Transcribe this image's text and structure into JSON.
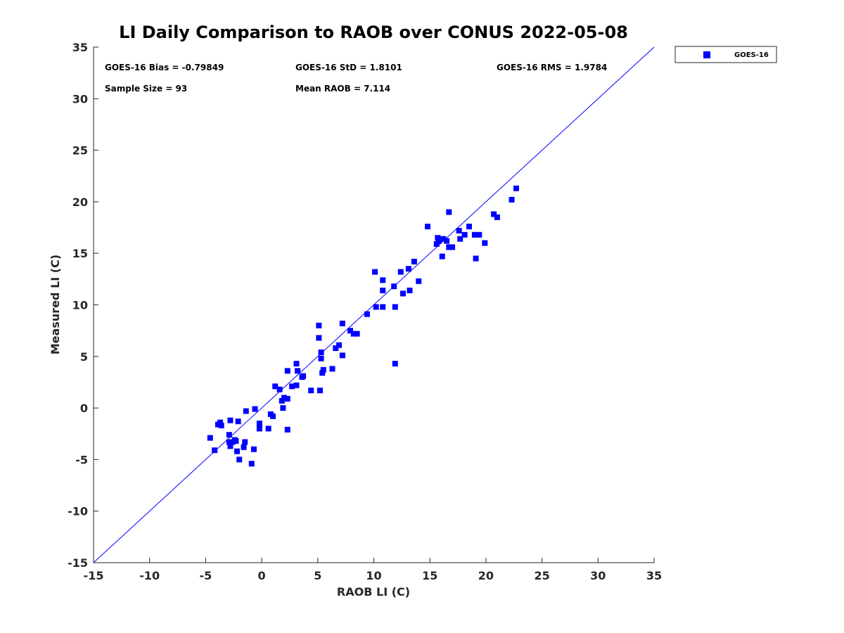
{
  "chart_data": {
    "type": "scatter",
    "title": "LI Daily Comparison to RAOB over CONUS 2022-05-08",
    "xlabel": "RAOB LI (C)",
    "ylabel": "Measured LI (C)",
    "xlim": [
      -15,
      35
    ],
    "ylim": [
      -15,
      35
    ],
    "xticks": [
      -15,
      -10,
      -5,
      0,
      5,
      10,
      15,
      20,
      25,
      30,
      35
    ],
    "yticks": [
      -15,
      -10,
      -5,
      0,
      5,
      10,
      15,
      20,
      25,
      30,
      35
    ],
    "grid": false,
    "legend_position": "outside top-right",
    "marker_color": "#0000ff",
    "line_color": "#0000ff",
    "reference_line": {
      "name": "1:1 line",
      "x": [
        -15,
        35
      ],
      "y": [
        -15,
        35
      ]
    },
    "stats": {
      "bias": "GOES-16 Bias = -0.79849",
      "std": "GOES-16 StD = 1.8101",
      "rms": "GOES-16 RMS = 1.9784",
      "sample_size": "Sample Size = 93",
      "mean_raob": "Mean RAOB = 7.114"
    },
    "series": [
      {
        "name": "GOES-16",
        "points": [
          [
            -4.6,
            -2.9
          ],
          [
            -4.2,
            -4.1
          ],
          [
            -3.9,
            -1.6
          ],
          [
            -3.7,
            -1.4
          ],
          [
            -3.6,
            -1.7
          ],
          [
            -2.9,
            -2.6
          ],
          [
            -2.9,
            -3.3
          ],
          [
            -2.8,
            -1.2
          ],
          [
            -2.8,
            -3.7
          ],
          [
            -2.6,
            -3.3
          ],
          [
            -2.4,
            -3.1
          ],
          [
            -2.3,
            -3.2
          ],
          [
            -2.2,
            -4.2
          ],
          [
            -2.1,
            -1.3
          ],
          [
            -2.0,
            -5.0
          ],
          [
            -1.6,
            -3.8
          ],
          [
            -1.5,
            -3.3
          ],
          [
            -1.4,
            -0.3
          ],
          [
            -0.9,
            -5.4
          ],
          [
            -0.7,
            -4.0
          ],
          [
            -0.6,
            -0.1
          ],
          [
            -0.2,
            -1.5
          ],
          [
            -0.2,
            -2.0
          ],
          [
            0.6,
            -2.0
          ],
          [
            0.8,
            -0.6
          ],
          [
            1.0,
            -0.8
          ],
          [
            1.2,
            2.1
          ],
          [
            1.6,
            1.8
          ],
          [
            1.8,
            0.7
          ],
          [
            1.9,
            0.0
          ],
          [
            2.0,
            1.0
          ],
          [
            2.3,
            0.9
          ],
          [
            2.3,
            3.6
          ],
          [
            2.3,
            -2.1
          ],
          [
            2.7,
            2.1
          ],
          [
            3.1,
            4.3
          ],
          [
            3.1,
            2.2
          ],
          [
            3.2,
            3.6
          ],
          [
            3.6,
            3.0
          ],
          [
            3.7,
            3.1
          ],
          [
            4.4,
            1.7
          ],
          [
            5.1,
            8.0
          ],
          [
            5.1,
            6.8
          ],
          [
            5.2,
            1.7
          ],
          [
            5.3,
            5.4
          ],
          [
            5.3,
            4.8
          ],
          [
            5.4,
            3.4
          ],
          [
            5.5,
            3.7
          ],
          [
            6.3,
            3.8
          ],
          [
            6.6,
            5.8
          ],
          [
            6.9,
            6.1
          ],
          [
            7.2,
            5.1
          ],
          [
            7.2,
            8.2
          ],
          [
            7.9,
            7.5
          ],
          [
            8.2,
            7.2
          ],
          [
            8.5,
            7.2
          ],
          [
            9.4,
            9.1
          ],
          [
            10.1,
            13.2
          ],
          [
            10.2,
            9.8
          ],
          [
            10.8,
            12.4
          ],
          [
            10.8,
            11.4
          ],
          [
            10.8,
            9.8
          ],
          [
            11.8,
            11.8
          ],
          [
            11.9,
            9.8
          ],
          [
            11.9,
            4.3
          ],
          [
            12.4,
            13.2
          ],
          [
            12.6,
            11.1
          ],
          [
            13.1,
            13.5
          ],
          [
            13.2,
            11.4
          ],
          [
            13.6,
            14.2
          ],
          [
            14.0,
            12.3
          ],
          [
            14.8,
            17.6
          ],
          [
            15.6,
            15.9
          ],
          [
            15.7,
            16.5
          ],
          [
            15.8,
            16.2
          ],
          [
            16.1,
            14.7
          ],
          [
            16.2,
            16.4
          ],
          [
            16.5,
            16.2
          ],
          [
            16.7,
            15.6
          ],
          [
            16.7,
            19.0
          ],
          [
            17.0,
            15.6
          ],
          [
            17.6,
            17.2
          ],
          [
            17.7,
            16.4
          ],
          [
            18.1,
            16.8
          ],
          [
            18.5,
            17.6
          ],
          [
            19.0,
            16.8
          ],
          [
            19.1,
            14.5
          ],
          [
            19.4,
            16.8
          ],
          [
            19.9,
            16.0
          ],
          [
            20.7,
            18.8
          ],
          [
            21.0,
            18.5
          ],
          [
            22.3,
            20.2
          ],
          [
            22.7,
            21.3
          ]
        ]
      }
    ]
  }
}
